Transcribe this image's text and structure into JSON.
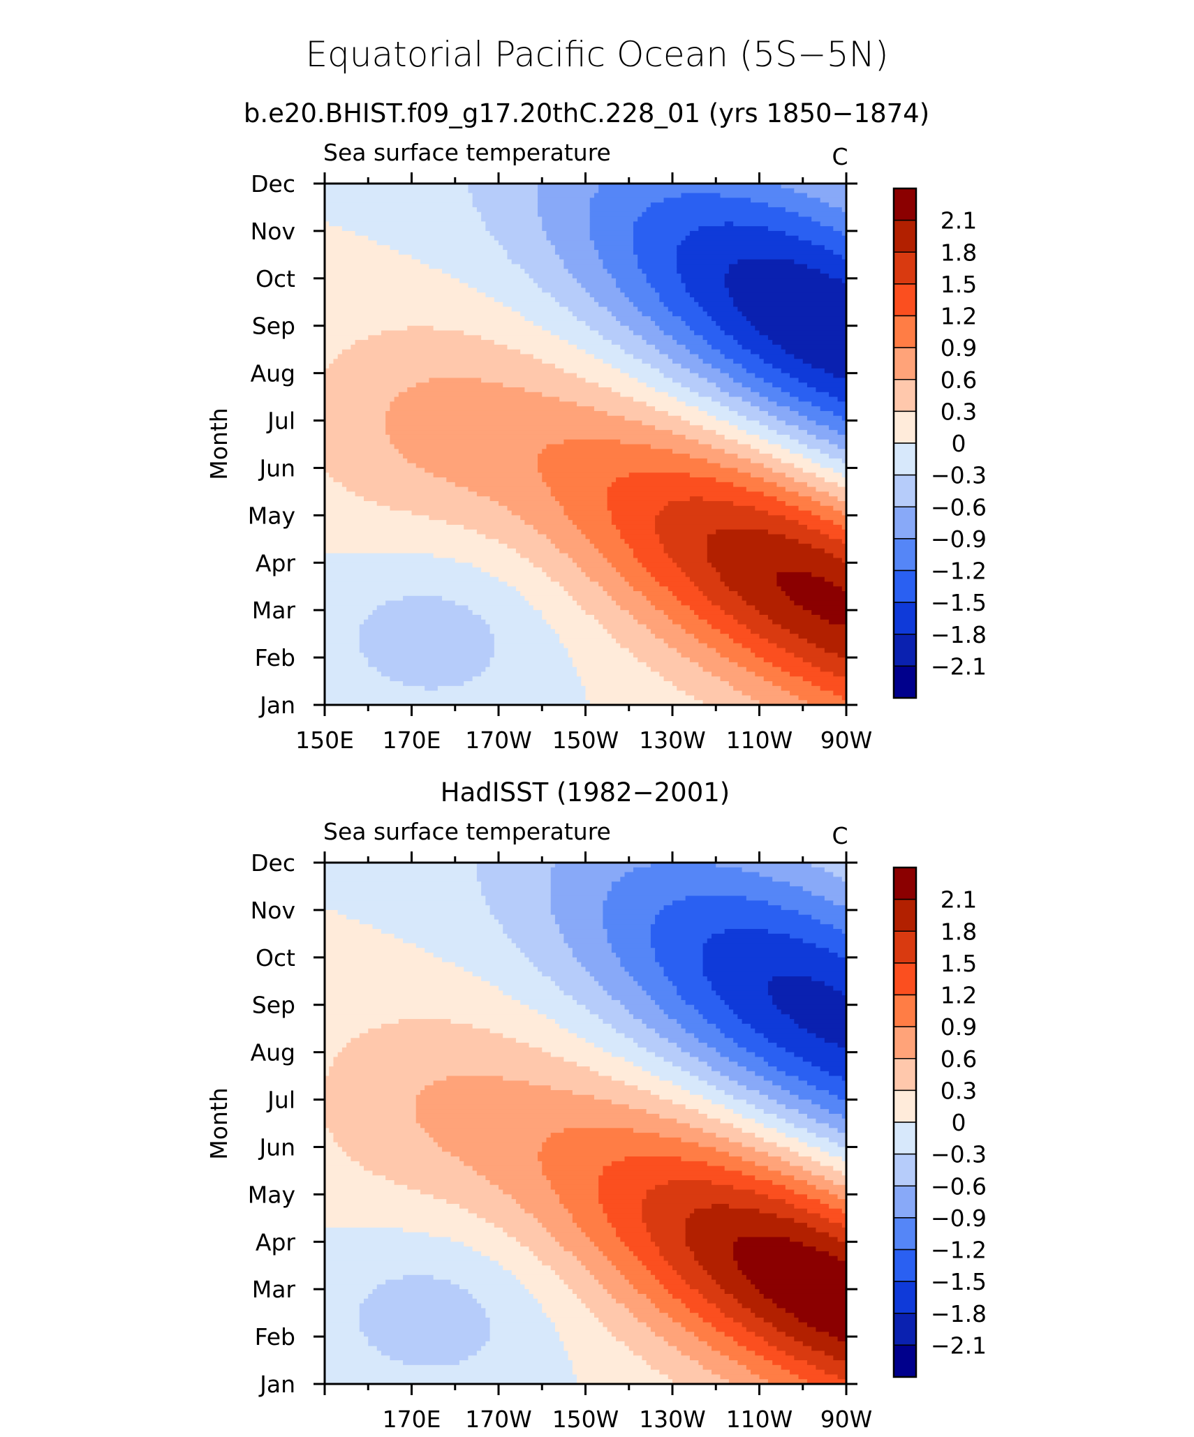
{
  "figure": {
    "title": "Equatorial Pacific Ocean (5S−5N)"
  },
  "colorbar": {
    "levels": [
      "2.1",
      "1.8",
      "1.5",
      "1.2",
      "0.9",
      "0.6",
      "0.3",
      "0",
      "−0.3",
      "−0.6",
      "−0.9",
      "−1.2",
      "−1.5",
      "−1.8",
      "−2.1"
    ],
    "colors": [
      "#8b0000",
      "#b22000",
      "#d93a10",
      "#fb4f1f",
      "#ff7d45",
      "#ffa379",
      "#ffc8ac",
      "#ffebda",
      "#d7e8fb",
      "#b6ccfa",
      "#88a9f8",
      "#5586f7",
      "#2a60f2",
      "#0f3ad9",
      "#0a21b0",
      "#00008c"
    ]
  },
  "chart_data": [
    {
      "type": "heatmap",
      "title": "b.e20.BHIST.f09_g17.20thC.228_01 (yrs 1850−1874)",
      "left_label": "Sea surface temperature",
      "right_label": "C",
      "ylabel": "Month",
      "y_ticks": [
        "Jan",
        "Feb",
        "Mar",
        "Apr",
        "May",
        "Jun",
        "Jul",
        "Aug",
        "Sep",
        "Oct",
        "Nov",
        "Dec"
      ],
      "x_ticks": [
        "150E",
        "170E",
        "170W",
        "150W",
        "130W",
        "110W",
        "90W"
      ],
      "x_range": [
        150,
        270
      ],
      "z_range": [
        -2.4,
        2.4
      ],
      "grid": false,
      "cold_center": {
        "lon": 265,
        "month": 9.0,
        "amp": -2.1
      },
      "warm_center": {
        "lon": 265,
        "month": 3.3,
        "amp": 2.2
      },
      "west_neg_amp": -0.45,
      "west_pos_amp": 0.45
    },
    {
      "type": "heatmap",
      "title": "HadISST (1982−2001)",
      "left_label": "Sea surface temperature",
      "right_label": "C",
      "ylabel": "Month",
      "y_ticks": [
        "Jan",
        "Feb",
        "Mar",
        "Apr",
        "May",
        "Jun",
        "Jul",
        "Aug",
        "Sep",
        "Oct",
        "Nov",
        "Dec"
      ],
      "x_ticks": [
        "170E",
        "170W",
        "150W",
        "130W",
        "110W",
        "90W"
      ],
      "x_range": [
        150,
        270
      ],
      "z_range": [
        -2.4,
        2.4
      ],
      "grid": false,
      "cold_center": {
        "lon": 265,
        "month": 8.8,
        "amp": -1.9
      },
      "warm_center": {
        "lon": 266,
        "month": 3.0,
        "amp": 2.4
      },
      "west_neg_amp": -0.45,
      "west_pos_amp": 0.35
    }
  ]
}
